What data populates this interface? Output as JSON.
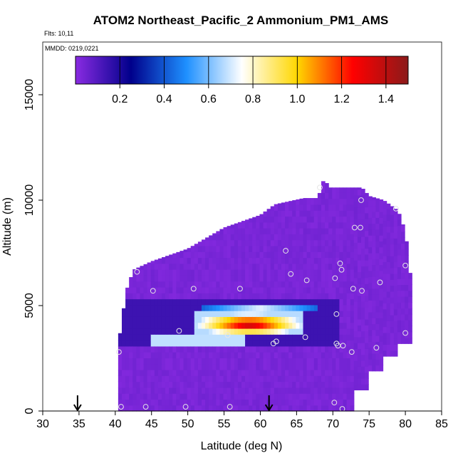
{
  "chart_data": {
    "type": "heatmap",
    "title": "ATOM2 Northeast_Pacific_2 Ammonium_PM1_AMS",
    "flights_text": "Flts: 10,11",
    "mmdd_text": "MMDD: 0219,0221",
    "xlabel": "Latitude (deg N)",
    "ylabel": "Altitude (m)",
    "xlim": [
      30,
      85
    ],
    "ylim": [
      0,
      17500
    ],
    "x_ticks": [
      "30",
      "35",
      "40",
      "45",
      "50",
      "55",
      "60",
      "65",
      "70",
      "75",
      "80",
      "85"
    ],
    "y_ticks": [
      "0",
      "5000",
      "10000",
      "15000"
    ],
    "colorbar": {
      "range": [
        0,
        1.5
      ],
      "ticks": [
        "0.2",
        "0.4",
        "0.6",
        "0.8",
        "1.0",
        "1.2",
        "1.4"
      ],
      "colors": [
        "#8a2be2",
        "#00008b",
        "#1e90ff",
        "#ffffff",
        "#ffd700",
        "#ff0000",
        "#8b1a1a"
      ]
    },
    "background_value": 0.03,
    "anomalies": [
      {
        "x_range": [
          40.5,
          71
        ],
        "y_range": [
          3100,
          5200
        ],
        "value": 0.14,
        "note": "dark blue band"
      },
      {
        "x_range": [
          45,
          58
        ],
        "y_range": [
          3100,
          3600
        ],
        "value": 0.6
      },
      {
        "x_range": [
          52,
          68
        ],
        "y_range": [
          4650,
          5000
        ],
        "value": 0.6
      },
      {
        "x_range": [
          51,
          66
        ],
        "y_range": [
          3600,
          4650
        ],
        "value": 1.2
      }
    ],
    "arrows_latitude": [
      34.8,
      61.2
    ],
    "sample_points": [
      [
        40.8,
        200
      ],
      [
        44.2,
        200
      ],
      [
        49.7,
        200
      ],
      [
        55.8,
        200
      ],
      [
        70.2,
        400
      ],
      [
        71.3,
        100
      ],
      [
        40.5,
        2800
      ],
      [
        48.8,
        3800
      ],
      [
        55.5,
        3600
      ],
      [
        61.8,
        3200
      ],
      [
        62.2,
        3300
      ],
      [
        66.2,
        3500
      ],
      [
        70.5,
        3200
      ],
      [
        70.7,
        3100
      ],
      [
        71.4,
        3100
      ],
      [
        72.6,
        2800
      ],
      [
        76.0,
        3000
      ],
      [
        80.0,
        3700
      ],
      [
        43.0,
        6600
      ],
      [
        45.2,
        5700
      ],
      [
        50.8,
        5800
      ],
      [
        57.2,
        5800
      ],
      [
        63.5,
        7600
      ],
      [
        64.2,
        6500
      ],
      [
        66.4,
        6200
      ],
      [
        70.3,
        6300
      ],
      [
        71.0,
        7000
      ],
      [
        71.2,
        6700
      ],
      [
        72.8,
        5800
      ],
      [
        74.0,
        5700
      ],
      [
        76.5,
        6100
      ],
      [
        80.0,
        6900
      ],
      [
        73.0,
        8700
      ],
      [
        73.8,
        8700
      ],
      [
        73.9,
        10000
      ],
      [
        78.7,
        9600
      ],
      [
        68.2,
        10600
      ],
      [
        70.5,
        4600
      ]
    ],
    "grid": false
  }
}
